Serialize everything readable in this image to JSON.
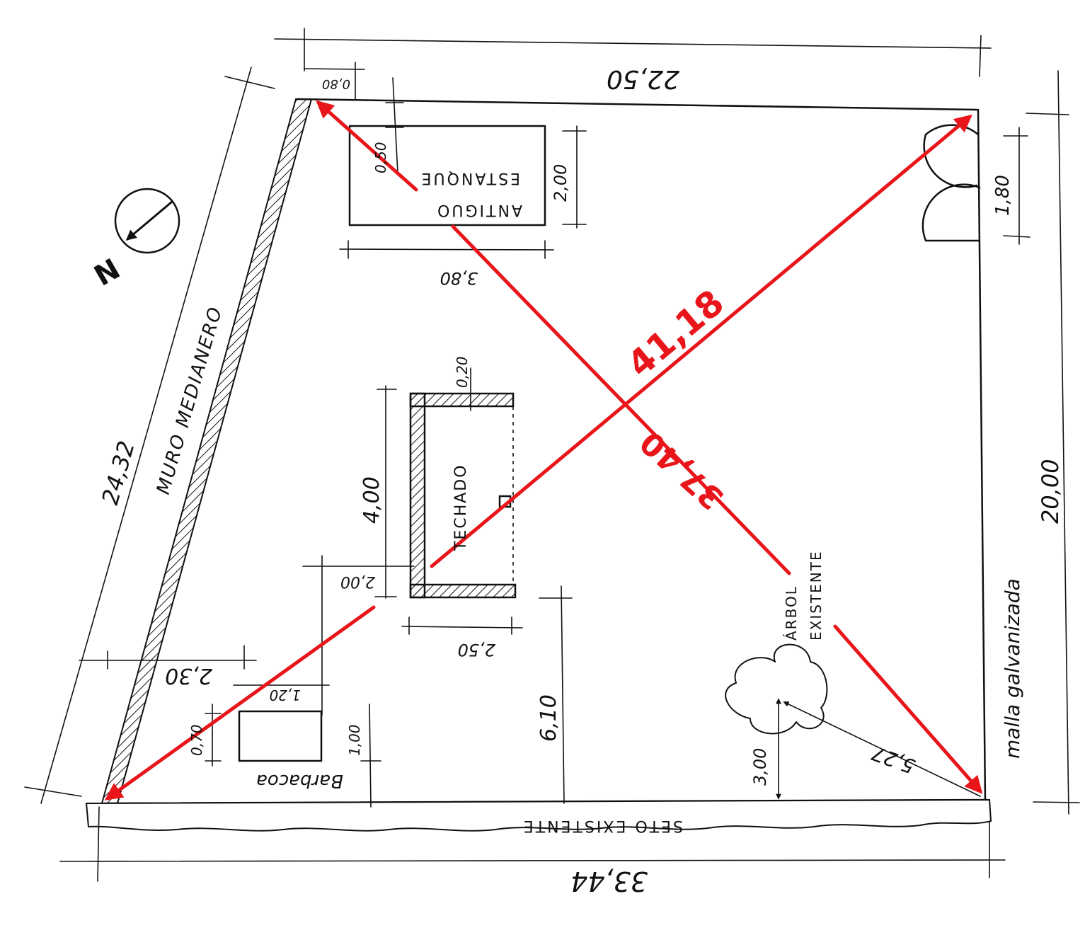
{
  "colors": {
    "ink": "#111111",
    "red": "#e8161b",
    "paper": "#ffffff"
  },
  "north": {
    "label": "N",
    "icon": "north-arrow-icon"
  },
  "labels": {
    "muro": "MURO MEDIANERO",
    "estanque_line1": "ANTIGUO",
    "estanque_line2": "ESTANQUE",
    "techado": "TECHADO",
    "barbacoa": "Barbacoa",
    "arbol_line1": "ÁRBOL",
    "arbol_line2": "EXISTENTE",
    "malla": "malla galvanizada",
    "seto": "SETO EXISTENTE"
  },
  "dimensions": {
    "top": "22,50",
    "wall_offset": "0,80",
    "pond_offset": "0,50",
    "pond_width": "3,80",
    "pond_height": "2,00",
    "gate": "1,80",
    "right": "20,00",
    "left": "24,32",
    "bottom": "33,44",
    "roof_wall": "0,20",
    "roof_height": "4,00",
    "roof_width": "2,50",
    "roof_gap": "2,00",
    "bbq_offset": "2,30",
    "bbq_width": "1,20",
    "bbq_depth": "0,70",
    "bbq_height": "1,00",
    "center_to_hedge": "6,10",
    "tree_to_hedge": "3,00",
    "tree_to_corner": "5,27"
  },
  "diagonals": {
    "d1": "41,18",
    "d2": "37,40"
  }
}
